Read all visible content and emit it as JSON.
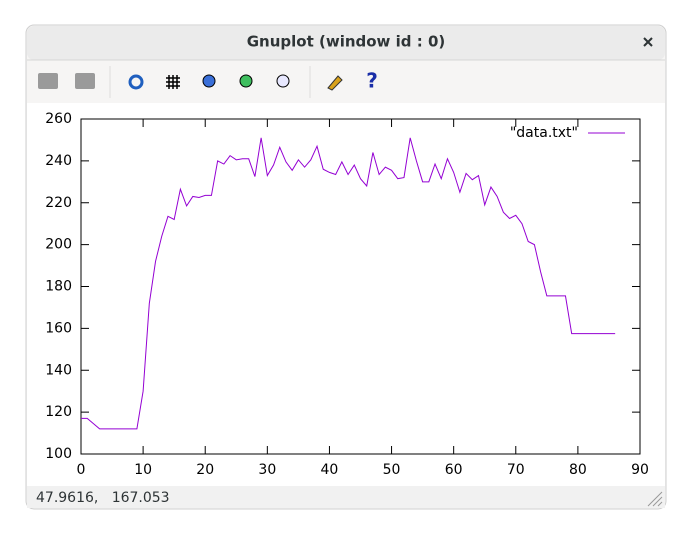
{
  "window": {
    "title": "Gnuplot (window id : 0)",
    "status": "47.9616,   167.053"
  },
  "chart_data": {
    "type": "line",
    "x": [
      0,
      1,
      2,
      3,
      4,
      5,
      6,
      7,
      8,
      9,
      10,
      11,
      12,
      13,
      14,
      15,
      16,
      17,
      18,
      19,
      20,
      21,
      22,
      23,
      24,
      25,
      26,
      27,
      28,
      29,
      30,
      31,
      32,
      33,
      34,
      35,
      36,
      37,
      38,
      39,
      40,
      41,
      42,
      43,
      44,
      45,
      46,
      47,
      48,
      49,
      50,
      51,
      52,
      53,
      54,
      55,
      56,
      57,
      58,
      59,
      60,
      61,
      62,
      63,
      64,
      65,
      66,
      67,
      68,
      69,
      70,
      71,
      72,
      73,
      74,
      75,
      76,
      77,
      78,
      79,
      80,
      81,
      82,
      83,
      84,
      85,
      86
    ],
    "series": [
      {
        "name": "\"data.txt\"",
        "color": "#9400d3",
        "values": [
          117,
          117,
          114.5,
          112,
          112,
          112,
          112,
          112,
          112,
          112,
          130,
          172,
          192,
          204,
          213.5,
          212,
          226.5,
          218.5,
          223,
          222.5,
          223.5,
          223.5,
          240,
          238.5,
          242.5,
          240.5,
          241,
          241,
          232.5,
          251,
          233,
          238,
          246.5,
          239.5,
          235.5,
          240.5,
          237,
          240.5,
          247,
          236,
          234.5,
          233.5,
          239.5,
          233.5,
          238,
          231.5,
          228,
          244,
          233.5,
          237,
          235.5,
          231.5,
          232,
          251,
          240,
          230,
          230,
          238.5,
          231.5,
          241,
          234.5,
          225,
          234,
          231,
          233,
          219,
          227.5,
          223,
          215.5,
          212.5,
          214,
          210,
          201.5,
          200,
          187,
          175.5,
          175.5,
          175.5,
          175.5,
          157.5,
          157.5,
          157.5,
          157.5,
          157.5,
          157.5,
          157.5,
          157.5
        ]
      }
    ],
    "xlim": [
      0,
      90
    ],
    "xticks": [
      0,
      10,
      20,
      30,
      40,
      50,
      60,
      70,
      80,
      90
    ],
    "ylim": [
      100,
      260
    ],
    "yticks": [
      100,
      120,
      140,
      160,
      180,
      200,
      220,
      240,
      260
    ],
    "legend": "top-right"
  }
}
